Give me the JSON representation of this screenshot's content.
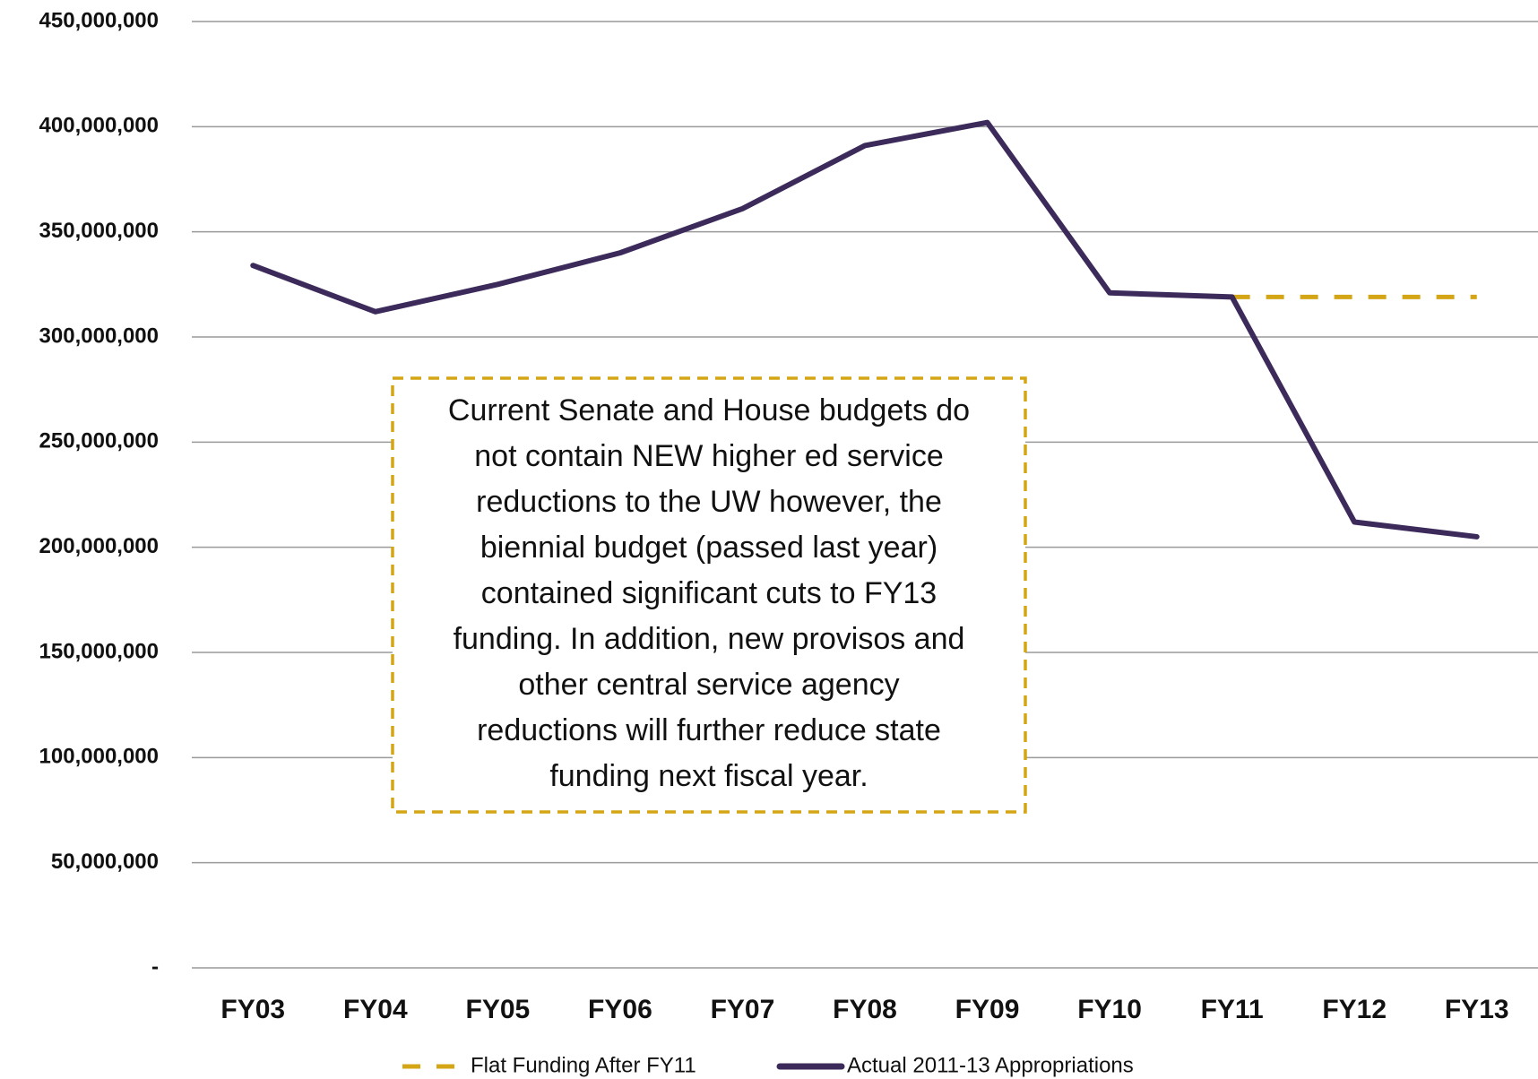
{
  "chart_data": {
    "type": "line",
    "categories": [
      "FY03",
      "FY04",
      "FY05",
      "FY06",
      "FY07",
      "FY08",
      "FY09",
      "FY10",
      "FY11",
      "FY12",
      "FY13"
    ],
    "series": [
      {
        "name": "Flat Funding After FY11",
        "color": "#d4a515",
        "dashed": true,
        "values": [
          null,
          null,
          null,
          null,
          null,
          null,
          null,
          null,
          319000000,
          319000000,
          319000000
        ]
      },
      {
        "name": "Actual 2011-13 Appropriations",
        "color": "#3b2a5a",
        "dashed": false,
        "values": [
          334000000,
          312000000,
          325000000,
          340000000,
          361000000,
          391000000,
          402000000,
          321000000,
          319000000,
          212000000,
          205000000
        ]
      }
    ],
    "ylim": [
      0,
      450000000
    ],
    "yticks": [
      {
        "value": 0,
        "label": "-"
      },
      {
        "value": 50000000,
        "label": "50,000,000"
      },
      {
        "value": 100000000,
        "label": "100,000,000"
      },
      {
        "value": 150000000,
        "label": "150,000,000"
      },
      {
        "value": 200000000,
        "label": "200,000,000"
      },
      {
        "value": 250000000,
        "label": "250,000,000"
      },
      {
        "value": 300000000,
        "label": "300,000,000"
      },
      {
        "value": 350000000,
        "label": "350,000,000"
      },
      {
        "value": 400000000,
        "label": "400,000,000"
      },
      {
        "value": 450000000,
        "label": "450,000,000"
      }
    ],
    "grid": true,
    "legend": "bottom",
    "annotation": [
      "Current Senate and House budgets do",
      "not contain NEW higher ed service",
      "reductions to the UW however, the",
      "biennial budget (passed last year)",
      "contained significant cuts to FY13",
      "funding. In addition, new provisos and",
      "other central service agency",
      "reductions will further reduce state",
      "funding next fiscal year."
    ]
  }
}
